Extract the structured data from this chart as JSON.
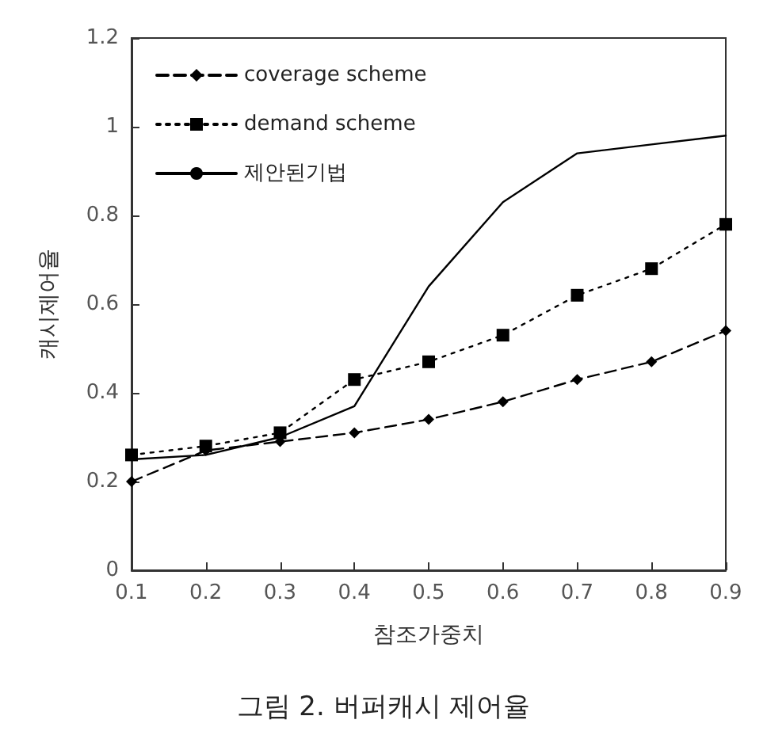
{
  "chart_data": {
    "type": "line",
    "title": "그림 2. 버퍼캐시 제어율",
    "xlabel": "참조가중치",
    "ylabel": "캐시제어율",
    "x": [
      0.1,
      0.2,
      0.3,
      0.4,
      0.5,
      0.6,
      0.7,
      0.8,
      0.9
    ],
    "xlim": [
      0.1,
      0.9
    ],
    "xticks": [
      0.1,
      0.2,
      0.3,
      0.4,
      0.5,
      0.6,
      0.7,
      0.8,
      0.9
    ],
    "ylim": [
      0,
      1.2
    ],
    "yticks": [
      0,
      0.2,
      0.4,
      0.6,
      0.8,
      1,
      1.2
    ],
    "grid": false,
    "legend": "top left",
    "series": [
      {
        "name": "coverage scheme",
        "color": "#000000",
        "marker": "diamond",
        "line_style": "dashed",
        "values": [
          0.2,
          0.27,
          0.29,
          0.31,
          0.34,
          0.38,
          0.43,
          0.47,
          0.54
        ]
      },
      {
        "name": "demand scheme",
        "color": "#000000",
        "marker": "square",
        "line_style": "dotted",
        "values": [
          0.26,
          0.28,
          0.31,
          0.43,
          0.47,
          0.53,
          0.62,
          0.68,
          0.78
        ]
      },
      {
        "name": "제안된기법",
        "color": "#000000",
        "marker": "none",
        "line_style": "solid",
        "values": [
          0.25,
          0.26,
          0.3,
          0.37,
          0.64,
          0.83,
          0.94,
          0.96,
          0.98
        ]
      }
    ]
  }
}
